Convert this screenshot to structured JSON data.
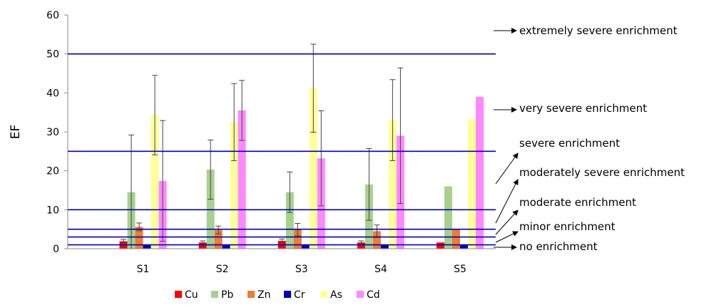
{
  "chart_data": {
    "type": "bar",
    "ylabel": "EF",
    "ylim": [
      0,
      60
    ],
    "yticks": [
      0,
      10,
      20,
      30,
      40,
      50,
      60
    ],
    "categories": [
      "S1",
      "S2",
      "S3",
      "S4",
      "S5"
    ],
    "series": [
      {
        "name": "Cu",
        "color": "#ff0000",
        "values": [
          1.9,
          1.6,
          2.0,
          1.6,
          1.6
        ],
        "err": [
          0.5,
          0.4,
          0.5,
          0.4,
          null
        ]
      },
      {
        "name": "Pb",
        "color": "#a9d18e",
        "values": [
          14.5,
          20.3,
          14.5,
          16.5,
          16.0
        ],
        "err": [
          14.7,
          7.6,
          5.2,
          9.2,
          null
        ]
      },
      {
        "name": "Zn",
        "color": "#ed7d31",
        "values": [
          5.6,
          4.8,
          4.9,
          4.5,
          5.0
        ],
        "err": [
          1.0,
          1.0,
          1.6,
          1.6,
          null
        ]
      },
      {
        "name": "Cr",
        "color": "#0000c0",
        "values": [
          1.0,
          0.9,
          1.1,
          0.9,
          0.9
        ],
        "err": [
          null,
          null,
          null,
          null,
          null
        ]
      },
      {
        "name": "As",
        "color": "#ffff99",
        "values": [
          34.3,
          32.5,
          41.2,
          33.0,
          33.3
        ],
        "err": [
          10.2,
          9.9,
          11.3,
          10.4,
          null
        ]
      },
      {
        "name": "Cd",
        "color": "#ff88ff",
        "values": [
          17.4,
          35.5,
          23.2,
          29.0,
          39.0
        ],
        "err": [
          15.5,
          7.7,
          12.2,
          17.4,
          null
        ]
      }
    ],
    "threshold_lines": [
      {
        "value": 1.0,
        "color": "#0000c0"
      },
      {
        "value": 3.0,
        "color": "#0000c0"
      },
      {
        "value": 5.0,
        "color": "#0000c0"
      },
      {
        "value": 10.0,
        "color": "#0000c0"
      },
      {
        "value": 25.0,
        "color": "#0000c0"
      },
      {
        "value": 50.0,
        "color": "#0000c0"
      }
    ],
    "category_labels": [
      {
        "text": "extremely severe enrichment",
        "arrow": "horizontal"
      },
      {
        "text": "very severe enrichment",
        "arrow": "horizontal"
      },
      {
        "text": "severe enrichment",
        "arrow": "diagonal"
      },
      {
        "text": "moderately severe enrichment",
        "arrow": "diagonal"
      },
      {
        "text": "moderate enrichment",
        "arrow": "diagonal"
      },
      {
        "text": "minor enrichment",
        "arrow": "diagonal"
      },
      {
        "text": "no enrichment",
        "arrow": "horizontal"
      }
    ],
    "legend_position": "bottom",
    "grid": false
  }
}
